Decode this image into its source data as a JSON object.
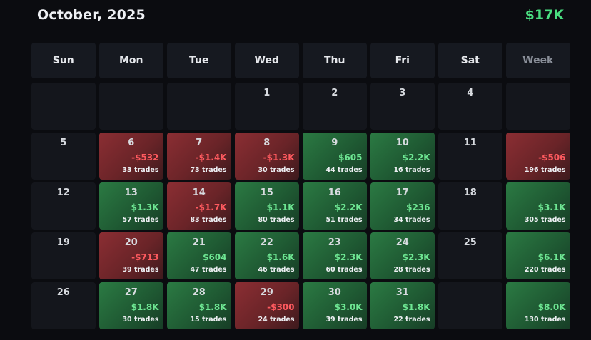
{
  "header": {
    "month": "October, 2025",
    "total": "$17K"
  },
  "colors": {
    "background": "#0b0c10",
    "positive": "#4ade80",
    "negative": "#ff5a5f",
    "cell": "#14161c"
  },
  "dayHeaders": [
    "Sun",
    "Mon",
    "Tue",
    "Wed",
    "Thu",
    "Fri",
    "Sat",
    "Week"
  ],
  "weeks": [
    [
      {
        "day": "",
        "pnl": "",
        "trades": "",
        "status": "empty"
      },
      {
        "day": "",
        "pnl": "",
        "trades": "",
        "status": "empty"
      },
      {
        "day": "",
        "pnl": "",
        "trades": "",
        "status": "empty"
      },
      {
        "day": "1",
        "pnl": "",
        "trades": "",
        "status": "empty"
      },
      {
        "day": "2",
        "pnl": "",
        "trades": "",
        "status": "empty"
      },
      {
        "day": "3",
        "pnl": "",
        "trades": "",
        "status": "empty"
      },
      {
        "day": "4",
        "pnl": "",
        "trades": "",
        "status": "empty"
      },
      {
        "day": "",
        "pnl": "",
        "trades": "",
        "status": "empty"
      }
    ],
    [
      {
        "day": "5",
        "pnl": "",
        "trades": "",
        "status": "empty"
      },
      {
        "day": "6",
        "pnl": "-$532",
        "trades": "33 trades",
        "status": "neg"
      },
      {
        "day": "7",
        "pnl": "-$1.4K",
        "trades": "73 trades",
        "status": "neg"
      },
      {
        "day": "8",
        "pnl": "-$1.3K",
        "trades": "30 trades",
        "status": "neg"
      },
      {
        "day": "9",
        "pnl": "$605",
        "trades": "44 trades",
        "status": "pos"
      },
      {
        "day": "10",
        "pnl": "$2.2K",
        "trades": "16 trades",
        "status": "pos"
      },
      {
        "day": "11",
        "pnl": "",
        "trades": "",
        "status": "empty"
      },
      {
        "day": "",
        "pnl": "-$506",
        "trades": "196 trades",
        "status": "neg"
      }
    ],
    [
      {
        "day": "12",
        "pnl": "",
        "trades": "",
        "status": "empty"
      },
      {
        "day": "13",
        "pnl": "$1.3K",
        "trades": "57 trades",
        "status": "pos"
      },
      {
        "day": "14",
        "pnl": "-$1.7K",
        "trades": "83 trades",
        "status": "neg"
      },
      {
        "day": "15",
        "pnl": "$1.1K",
        "trades": "80 trades",
        "status": "pos"
      },
      {
        "day": "16",
        "pnl": "$2.2K",
        "trades": "51 trades",
        "status": "pos"
      },
      {
        "day": "17",
        "pnl": "$236",
        "trades": "34 trades",
        "status": "pos"
      },
      {
        "day": "18",
        "pnl": "",
        "trades": "",
        "status": "empty"
      },
      {
        "day": "",
        "pnl": "$3.1K",
        "trades": "305 trades",
        "status": "pos"
      }
    ],
    [
      {
        "day": "19",
        "pnl": "",
        "trades": "",
        "status": "empty"
      },
      {
        "day": "20",
        "pnl": "-$713",
        "trades": "39 trades",
        "status": "neg"
      },
      {
        "day": "21",
        "pnl": "$604",
        "trades": "47 trades",
        "status": "pos"
      },
      {
        "day": "22",
        "pnl": "$1.6K",
        "trades": "46 trades",
        "status": "pos"
      },
      {
        "day": "23",
        "pnl": "$2.3K",
        "trades": "60 trades",
        "status": "pos"
      },
      {
        "day": "24",
        "pnl": "$2.3K",
        "trades": "28 trades",
        "status": "pos"
      },
      {
        "day": "25",
        "pnl": "",
        "trades": "",
        "status": "empty"
      },
      {
        "day": "",
        "pnl": "$6.1K",
        "trades": "220 trades",
        "status": "pos"
      }
    ],
    [
      {
        "day": "26",
        "pnl": "",
        "trades": "",
        "status": "empty"
      },
      {
        "day": "27",
        "pnl": "$1.8K",
        "trades": "30 trades",
        "status": "pos"
      },
      {
        "day": "28",
        "pnl": "$1.8K",
        "trades": "15 trades",
        "status": "pos"
      },
      {
        "day": "29",
        "pnl": "-$300",
        "trades": "24 trades",
        "status": "neg"
      },
      {
        "day": "30",
        "pnl": "$3.0K",
        "trades": "39 trades",
        "status": "pos"
      },
      {
        "day": "31",
        "pnl": "$1.8K",
        "trades": "22 trades",
        "status": "pos"
      },
      {
        "day": "",
        "pnl": "",
        "trades": "",
        "status": "empty"
      },
      {
        "day": "",
        "pnl": "$8.0K",
        "trades": "130 trades",
        "status": "pos"
      }
    ]
  ]
}
